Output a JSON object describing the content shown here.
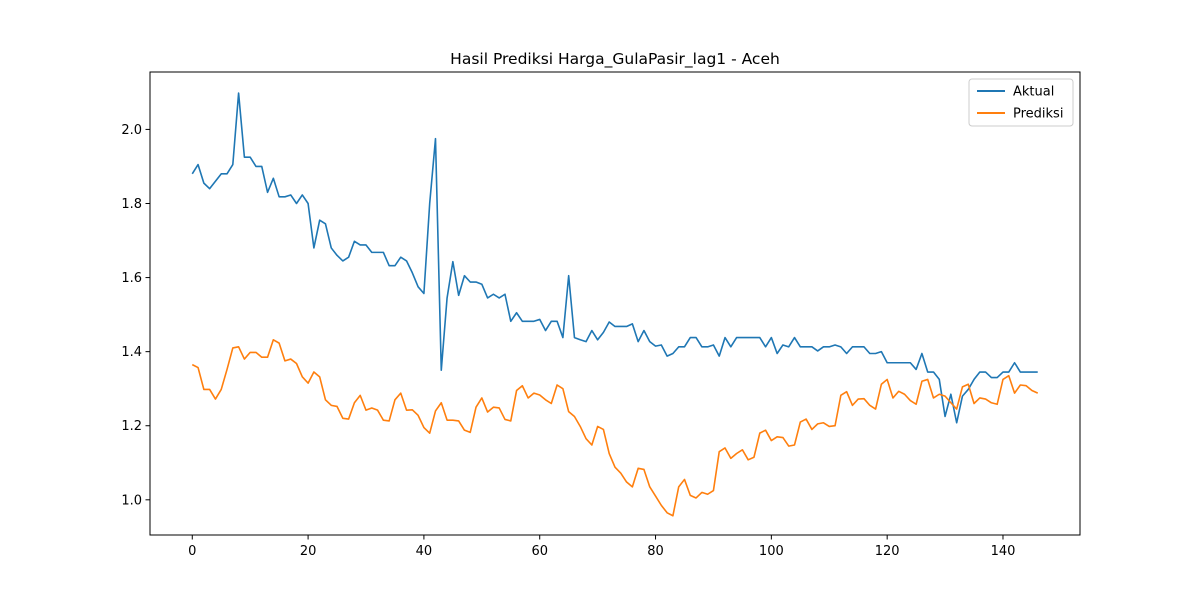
{
  "chart_data": {
    "type": "line",
    "title": "Hasil Prediksi Harga_GulaPasir_lag1 - Aceh",
    "xlabel": "",
    "ylabel": "",
    "xlim": [
      -7.3,
      153.3
    ],
    "ylim": [
      0.905,
      2.155
    ],
    "xticks": [
      0,
      20,
      40,
      60,
      80,
      100,
      120,
      140
    ],
    "yticks": [
      1.0,
      1.2,
      1.4,
      1.6,
      1.8,
      2.0
    ],
    "ytick_labels": [
      "1.0",
      "1.2",
      "1.4",
      "1.6",
      "1.8",
      "2.0"
    ],
    "grid": false,
    "legend_position": "upper right",
    "series": [
      {
        "name": "Aktual",
        "color": "#1f77b4",
        "values": [
          1.88,
          1.905,
          1.855,
          1.84,
          1.86,
          1.88,
          1.88,
          1.905,
          2.098,
          1.925,
          1.925,
          1.9,
          1.9,
          1.83,
          1.868,
          1.818,
          1.818,
          1.823,
          1.8,
          1.823,
          1.8,
          1.68,
          1.755,
          1.745,
          1.68,
          1.66,
          1.645,
          1.655,
          1.698,
          1.688,
          1.688,
          1.668,
          1.668,
          1.668,
          1.632,
          1.632,
          1.655,
          1.645,
          1.613,
          1.575,
          1.557,
          1.8,
          1.975,
          1.35,
          1.545,
          1.643,
          1.552,
          1.605,
          1.588,
          1.588,
          1.582,
          1.545,
          1.555,
          1.545,
          1.555,
          1.482,
          1.505,
          1.482,
          1.482,
          1.482,
          1.487,
          1.457,
          1.482,
          1.482,
          1.438,
          1.605,
          1.438,
          1.432,
          1.427,
          1.457,
          1.432,
          1.452,
          1.48,
          1.468,
          1.468,
          1.468,
          1.475,
          1.427,
          1.457,
          1.427,
          1.415,
          1.418,
          1.388,
          1.395,
          1.413,
          1.413,
          1.438,
          1.438,
          1.413,
          1.413,
          1.418,
          1.388,
          1.438,
          1.413,
          1.438,
          1.438,
          1.438,
          1.438,
          1.438,
          1.413,
          1.438,
          1.395,
          1.418,
          1.413,
          1.438,
          1.413,
          1.413,
          1.413,
          1.402,
          1.413,
          1.413,
          1.418,
          1.413,
          1.395,
          1.413,
          1.413,
          1.413,
          1.395,
          1.395,
          1.4,
          1.37,
          1.37,
          1.37,
          1.37,
          1.37,
          1.352,
          1.395,
          1.345,
          1.345,
          1.325,
          1.225,
          1.285,
          1.208,
          1.28,
          1.298,
          1.325,
          1.345,
          1.345,
          1.33,
          1.33,
          1.345,
          1.345,
          1.37,
          1.345,
          1.345,
          1.345,
          1.345
        ]
      },
      {
        "name": "Prediksi",
        "color": "#ff7f0e",
        "values": [
          1.365,
          1.357,
          1.298,
          1.298,
          1.272,
          1.298,
          1.352,
          1.41,
          1.413,
          1.38,
          1.398,
          1.398,
          1.385,
          1.385,
          1.432,
          1.423,
          1.375,
          1.38,
          1.368,
          1.332,
          1.315,
          1.345,
          1.332,
          1.27,
          1.255,
          1.252,
          1.22,
          1.218,
          1.262,
          1.282,
          1.242,
          1.248,
          1.242,
          1.215,
          1.213,
          1.27,
          1.288,
          1.242,
          1.243,
          1.228,
          1.195,
          1.18,
          1.24,
          1.262,
          1.215,
          1.215,
          1.213,
          1.188,
          1.182,
          1.25,
          1.275,
          1.237,
          1.25,
          1.248,
          1.217,
          1.213,
          1.295,
          1.308,
          1.275,
          1.288,
          1.283,
          1.27,
          1.26,
          1.31,
          1.3,
          1.238,
          1.225,
          1.198,
          1.165,
          1.148,
          1.198,
          1.19,
          1.125,
          1.088,
          1.072,
          1.048,
          1.035,
          1.085,
          1.082,
          1.035,
          1.01,
          0.985,
          0.965,
          0.957,
          1.035,
          1.055,
          1.012,
          1.005,
          1.02,
          1.015,
          1.025,
          1.13,
          1.14,
          1.112,
          1.125,
          1.135,
          1.108,
          1.115,
          1.18,
          1.188,
          1.16,
          1.17,
          1.168,
          1.145,
          1.148,
          1.21,
          1.218,
          1.19,
          1.205,
          1.208,
          1.198,
          1.2,
          1.282,
          1.292,
          1.255,
          1.272,
          1.273,
          1.255,
          1.245,
          1.312,
          1.325,
          1.275,
          1.293,
          1.285,
          1.268,
          1.258,
          1.32,
          1.325,
          1.275,
          1.285,
          1.28,
          1.262,
          1.245,
          1.305,
          1.312,
          1.26,
          1.275,
          1.272,
          1.262,
          1.258,
          1.325,
          1.335,
          1.288,
          1.31,
          1.308,
          1.295,
          1.288
        ]
      }
    ]
  }
}
